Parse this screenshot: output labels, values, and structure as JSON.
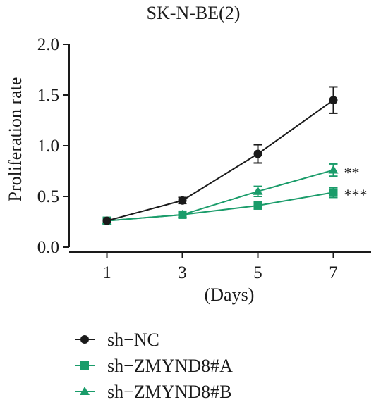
{
  "chart_data": {
    "type": "line",
    "title": "SK-N-BE(2)",
    "xlabel": "(Days)",
    "ylabel": "Proliferation rate",
    "x": [
      1,
      3,
      5,
      7
    ],
    "x_ticks": [
      "1",
      "3",
      "5",
      "7"
    ],
    "xlim": [
      0,
      8
    ],
    "ylim": [
      0,
      2.0
    ],
    "y_ticks": [
      "0.0",
      "0.5",
      "1.0",
      "1.5",
      "2.0"
    ],
    "grid": false,
    "legend_position": "bottom-left",
    "series": [
      {
        "name": "sh−NC",
        "marker": "circle",
        "color": "#1a1a1a",
        "values": [
          0.26,
          0.46,
          0.92,
          1.45
        ],
        "errors": [
          0.02,
          0.03,
          0.09,
          0.13
        ]
      },
      {
        "name": "sh−ZMYND8#A",
        "marker": "square",
        "color": "#1a9c6a",
        "values": [
          0.26,
          0.32,
          0.41,
          0.54
        ],
        "errors": [
          0.02,
          0.02,
          0.02,
          0.05
        ],
        "annotation": "***"
      },
      {
        "name": "sh−ZMYND8#B",
        "marker": "triangle",
        "color": "#1a9c6a",
        "values": [
          0.26,
          0.32,
          0.55,
          0.76
        ],
        "errors": [
          0.02,
          0.02,
          0.05,
          0.06
        ],
        "annotation": "**"
      }
    ]
  }
}
